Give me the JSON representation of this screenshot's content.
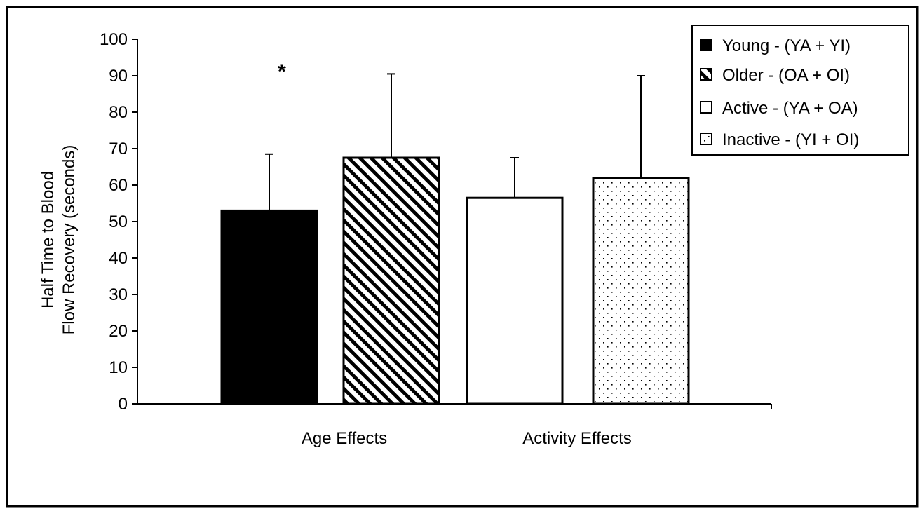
{
  "chart_data": {
    "type": "bar",
    "categories": [
      "Age Effects",
      "Activity Effects"
    ],
    "series": [
      {
        "name": "Young - (YA + YI)",
        "category": "Age Effects",
        "value": 53,
        "error": 15.5,
        "pattern": "solid"
      },
      {
        "name": "Older - (OA + OI)",
        "category": "Age Effects",
        "value": 67.5,
        "error": 23,
        "pattern": "diagonal-hatch"
      },
      {
        "name": "Active - (YA + OA)",
        "category": "Activity Effects",
        "value": 56.5,
        "error": 11,
        "pattern": "empty"
      },
      {
        "name": "Inactive - (YI + OI)",
        "category": "Activity Effects",
        "value": 62,
        "error": 28,
        "pattern": "dotted"
      }
    ],
    "ylabel_lines": [
      "Half Time to Blood",
      "Flow Recovery (seconds)"
    ],
    "xlabel": "",
    "ylim": [
      0,
      100
    ],
    "yticks": [
      0,
      10,
      20,
      30,
      40,
      50,
      60,
      70,
      80,
      90,
      100
    ],
    "grid": false,
    "legend_position": "top-right",
    "annotations": [
      {
        "text": "*",
        "series": "Young - (YA + YI)"
      }
    ],
    "colors": {
      "bar_fill": "#000000",
      "bar_stroke": "#000000",
      "background": "#ffffff"
    }
  }
}
